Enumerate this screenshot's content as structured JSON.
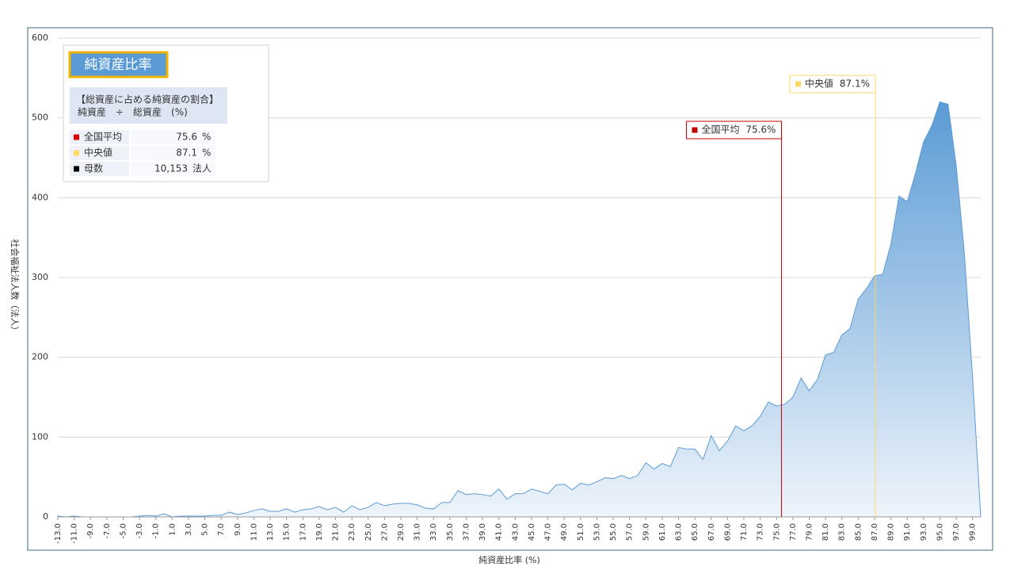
{
  "chart_data": {
    "type": "area",
    "y_label": "社会福祉法人数（法人）",
    "x_label": "純資産比率 (%)",
    "x": [
      -13,
      -12,
      -11,
      -10,
      -9,
      -8,
      -7,
      -6,
      -5,
      -4,
      -3,
      -2,
      -1,
      0,
      1,
      2,
      3,
      4,
      5,
      6,
      7,
      8,
      9,
      10,
      11,
      12,
      13,
      14,
      15,
      16,
      17,
      18,
      19,
      20,
      21,
      22,
      23,
      24,
      25,
      26,
      27,
      28,
      29,
      30,
      31,
      32,
      33,
      34,
      35,
      36,
      37,
      38,
      39,
      40,
      41,
      42,
      43,
      44,
      45,
      46,
      47,
      48,
      49,
      50,
      51,
      52,
      53,
      54,
      55,
      56,
      57,
      58,
      59,
      60,
      61,
      62,
      63,
      64,
      65,
      66,
      67,
      68,
      69,
      70,
      71,
      72,
      73,
      74,
      75,
      76,
      77,
      78,
      79,
      80,
      81,
      82,
      83,
      84,
      85,
      86,
      87,
      88,
      89,
      90,
      91,
      92,
      93,
      94,
      95,
      96,
      97,
      98,
      99,
      100
    ],
    "values": [
      1,
      0,
      1,
      0,
      0,
      0,
      0,
      0,
      0,
      0,
      1,
      2,
      1,
      4,
      0,
      1,
      1,
      1,
      1,
      2,
      2,
      6,
      3,
      5,
      8,
      10,
      7,
      7,
      10,
      6,
      9,
      10,
      13,
      9,
      12,
      6,
      14,
      9,
      12,
      18,
      14,
      16,
      17,
      17,
      15,
      11,
      10,
      18,
      18,
      33,
      28,
      29,
      28,
      26,
      35,
      22,
      29,
      29,
      35,
      32,
      29,
      40,
      41,
      34,
      42,
      40,
      44,
      49,
      48,
      52,
      48,
      52,
      68,
      60,
      67,
      63,
      87,
      85,
      85,
      72,
      102,
      83,
      95,
      114,
      108,
      114,
      126,
      144,
      139,
      141,
      150,
      174,
      158,
      172,
      203,
      206,
      228,
      236,
      273,
      286,
      302,
      304,
      342,
      402,
      395,
      430,
      470,
      490,
      520,
      517,
      440,
      330,
      175,
      0
    ],
    "color": "#5b9bd5",
    "xlim": [
      -13,
      100
    ],
    "ylim": [
      0,
      600
    ],
    "yticks": [
      0,
      100,
      200,
      300,
      400,
      500,
      600
    ],
    "xticks": [
      {
        "value": -13,
        "label": "-13.0"
      },
      {
        "value": -11,
        "label": "-11.0"
      },
      {
        "value": -9,
        "label": "-9.0"
      },
      {
        "value": -7,
        "label": "-7.0"
      },
      {
        "value": -5,
        "label": "-5.0"
      },
      {
        "value": -3,
        "label": "-3.0"
      },
      {
        "value": -1,
        "label": "-1.0"
      },
      {
        "value": 1,
        "label": "1.0"
      },
      {
        "value": 3,
        "label": "3.0"
      },
      {
        "value": 5,
        "label": "5.0"
      },
      {
        "value": 7,
        "label": "7.0"
      },
      {
        "value": 9,
        "label": "9.0"
      },
      {
        "value": 11,
        "label": "11.0"
      },
      {
        "value": 13,
        "label": "13.0"
      },
      {
        "value": 15,
        "label": "15.0"
      },
      {
        "value": 17,
        "label": "17.0"
      },
      {
        "value": 19,
        "label": "19.0"
      },
      {
        "value": 21,
        "label": "21.0"
      },
      {
        "value": 23,
        "label": "23.0"
      },
      {
        "value": 25,
        "label": "25.0"
      },
      {
        "value": 27,
        "label": "27.0"
      },
      {
        "value": 29,
        "label": "29.0"
      },
      {
        "value": 31,
        "label": "31.0"
      },
      {
        "value": 33,
        "label": "33.0"
      },
      {
        "value": 35,
        "label": "35.0"
      },
      {
        "value": 37,
        "label": "37.0"
      },
      {
        "value": 39,
        "label": "39.0"
      },
      {
        "value": 41,
        "label": "41.0"
      },
      {
        "value": 43,
        "label": "43.0"
      },
      {
        "value": 45,
        "label": "45.0"
      },
      {
        "value": 47,
        "label": "47.0"
      },
      {
        "value": 49,
        "label": "49.0"
      },
      {
        "value": 51,
        "label": "51.0"
      },
      {
        "value": 53,
        "label": "53.0"
      },
      {
        "value": 55,
        "label": "55.0"
      },
      {
        "value": 57,
        "label": "57.0"
      },
      {
        "value": 59,
        "label": "59.0"
      },
      {
        "value": 61,
        "label": "61.0"
      },
      {
        "value": 63,
        "label": "63.0"
      },
      {
        "value": 65,
        "label": "65.0"
      },
      {
        "value": 67,
        "label": "67.0"
      },
      {
        "value": 69,
        "label": "69.0"
      },
      {
        "value": 71,
        "label": "71.0"
      },
      {
        "value": 73,
        "label": "73.0"
      },
      {
        "value": 75,
        "label": "75.0"
      },
      {
        "value": 77,
        "label": "77.0"
      },
      {
        "value": 79,
        "label": "79.0"
      },
      {
        "value": 81,
        "label": "81.0"
      },
      {
        "value": 83,
        "label": "83.0"
      },
      {
        "value": 85,
        "label": "85.0"
      },
      {
        "value": 87,
        "label": "87.0"
      },
      {
        "value": 89,
        "label": "89.0"
      },
      {
        "value": 91,
        "label": "91.0"
      },
      {
        "value": 93,
        "label": "93.0"
      },
      {
        "value": 95,
        "label": "95.0"
      },
      {
        "value": 97,
        "label": "97.0"
      },
      {
        "value": 99,
        "label": "99.0"
      }
    ],
    "grid": true,
    "markers": [
      {
        "name": "全国平均",
        "value": 75.6,
        "value_label": "75.6%",
        "color": "#c00000"
      },
      {
        "name": "中央値",
        "value": 87.1,
        "value_label": "87.1%",
        "color": "#ffd966"
      }
    ],
    "info_box": {
      "title": "純資産比率",
      "description": [
        "【総資産に占める純資産の割合】",
        "純資産　÷　総資産　(%)"
      ],
      "rows": [
        {
          "label": "全国平均",
          "value": "75.6",
          "unit": "%",
          "color": "#e00000"
        },
        {
          "label": "中央値",
          "value": "87.1",
          "unit": "%",
          "color": "#ffd966"
        },
        {
          "label": "母数",
          "value": "10,153",
          "unit": "法人",
          "color": "#000000"
        }
      ]
    }
  }
}
